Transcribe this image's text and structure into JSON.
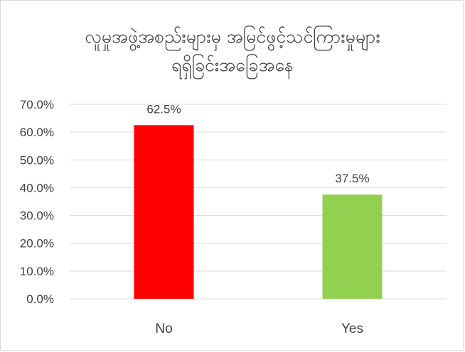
{
  "chart_data": {
    "type": "bar",
    "title_lines": [
      "လူမှုအဖွဲ့အစည်းများမှ အမြင်ဖွင့်သင်ကြားမှုများ",
      "ရရှိခြင်းအခြေအနေ"
    ],
    "categories": [
      "No",
      "Yes"
    ],
    "values": [
      62.5,
      37.5
    ],
    "data_labels": [
      "62.5%",
      "37.5%"
    ],
    "bar_colors": [
      "#ff0000",
      "#92d050"
    ],
    "ylim": [
      0,
      70
    ],
    "y_ticks": [
      0,
      10,
      20,
      30,
      40,
      50,
      60,
      70
    ],
    "y_tick_labels": [
      "0.0%",
      "10.0%",
      "20.0%",
      "30.0%",
      "40.0%",
      "50.0%",
      "60.0%",
      "70.0%"
    ],
    "grid": true,
    "gridline_color": "#d9d9d9"
  }
}
